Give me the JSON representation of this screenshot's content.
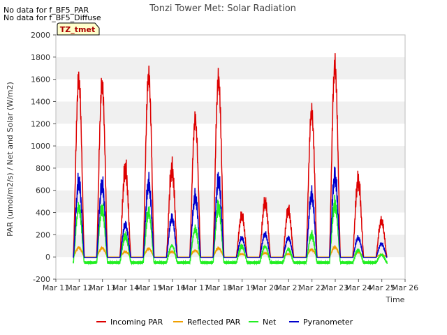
{
  "no_data_messages": [
    "No data for f_BF5_PAR",
    "No data for f_BF5_Diffuse"
  ],
  "chart_data": {
    "type": "line",
    "title": "Tonzi Tower Met: Solar Radiation",
    "xlabel": "Time",
    "ylabel": "PAR (umol/m2/s) / Net and Solar (W/m2)",
    "xlim": [
      11,
      26
    ],
    "ylim": [
      -200,
      2000
    ],
    "y_ticks": [
      -200,
      0,
      200,
      400,
      600,
      800,
      1000,
      1200,
      1400,
      1600,
      1800,
      2000
    ],
    "x_ticks": [
      "Mar 11",
      "Mar 12",
      "Mar 13",
      "Mar 14",
      "Mar 15",
      "Mar 16",
      "Mar 17",
      "Mar 18",
      "Mar 19",
      "Mar 20",
      "Mar 21",
      "Mar 22",
      "Mar 23",
      "Mar 24",
      "Mar 25",
      "Mar 26"
    ],
    "grid": "horizontal alternating bands",
    "legend_position": "bottom",
    "tag_label": "TZ_tmet",
    "day_starts": [
      11.75,
      12.75,
      13.75,
      14.75,
      15.75,
      16.75,
      17.75,
      18.75,
      19.75,
      20.75,
      21.75,
      22.75,
      23.75,
      24.75
    ],
    "series": [
      {
        "name": "Incoming PAR",
        "color": "#dd0000",
        "daily_peak": [
          1720,
          1675,
          920,
          1760,
          920,
          1335,
          1725,
          435,
          575,
          490,
          1410,
          1855,
          800,
          380
        ],
        "night_value": 0
      },
      {
        "name": "Reflected PAR",
        "color": "#f0a000",
        "daily_peak": [
          100,
          95,
          55,
          90,
          55,
          70,
          95,
          30,
          40,
          30,
          80,
          105,
          50,
          25
        ],
        "night_value": 0
      },
      {
        "name": "Net",
        "color": "#22ee22",
        "daily_peak": [
          530,
          510,
          230,
          480,
          130,
          300,
          530,
          120,
          120,
          90,
          240,
          560,
          80,
          30
        ],
        "night_value": -50
      },
      {
        "name": "Pyranometer",
        "color": "#0000cc",
        "daily_peak": [
          790,
          760,
          340,
          770,
          410,
          630,
          810,
          200,
          240,
          200,
          650,
          850,
          200,
          140
        ],
        "night_value": -5
      }
    ]
  }
}
